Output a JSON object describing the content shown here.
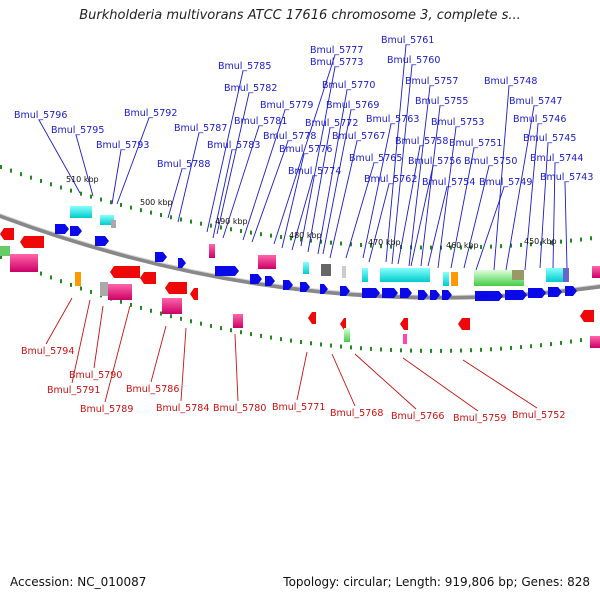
{
  "title": "Burkholderia multivorans ATCC 17616 chromosome 3, complete s...",
  "footer": {
    "accession": "Accession: NC_010087",
    "summary": "Topology: circular; Length: 919,806 bp; Genes: 828"
  },
  "colors": {
    "forward_label": "#1a1acc",
    "reverse_label": "#cc1111",
    "backbone": "#888888",
    "tick_mark": "#228822"
  },
  "ticks": [
    "510 kbp",
    "500 kbp",
    "490 kbp",
    "480 kbp",
    "470 kbp",
    "460 kbp",
    "450 kbp"
  ],
  "forward_labels": [
    "Bmul_5796",
    "Bmul_5795",
    "Bmul_5793",
    "Bmul_5792",
    "Bmul_5788",
    "Bmul_5787",
    "Bmul_5785",
    "Bmul_5783",
    "Bmul_5782",
    "Bmul_5781",
    "Bmul_5779",
    "Bmul_5778",
    "Bmul_5777",
    "Bmul_5776",
    "Bmul_5774",
    "Bmul_5773",
    "Bmul_5772",
    "Bmul_5770",
    "Bmul_5769",
    "Bmul_5767",
    "Bmul_5765",
    "Bmul_5763",
    "Bmul_5762",
    "Bmul_5761",
    "Bmul_5760",
    "Bmul_5758",
    "Bmul_5757",
    "Bmul_5756",
    "Bmul_5755",
    "Bmul_5754",
    "Bmul_5753",
    "Bmul_5751",
    "Bmul_5750",
    "Bmul_5749",
    "Bmul_5748",
    "Bmul_5747",
    "Bmul_5746",
    "Bmul_5745",
    "Bmul_5744",
    "Bmul_5743"
  ],
  "reverse_labels": [
    "Bmul_5794",
    "Bmul_5791",
    "Bmul_5790",
    "Bmul_5789",
    "Bmul_5786",
    "Bmul_5784",
    "Bmul_5780",
    "Bmul_5771",
    "Bmul_5768",
    "Bmul_5766",
    "Bmul_5759",
    "Bmul_5752"
  ]
}
